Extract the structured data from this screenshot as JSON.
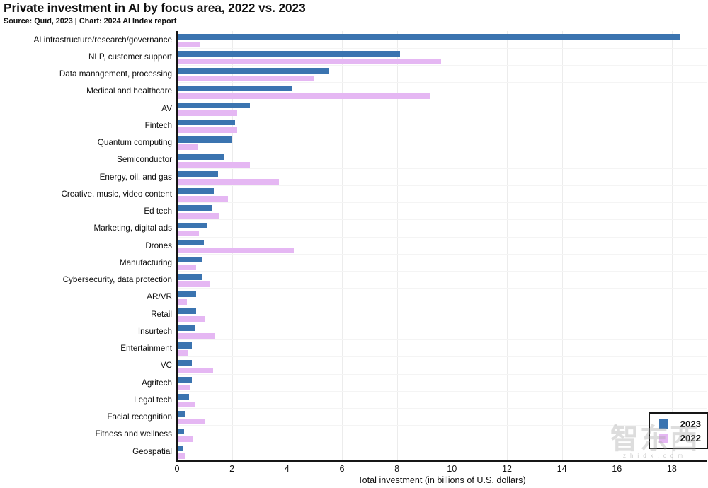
{
  "header": {
    "title": "Private investment in AI by focus area, 2022 vs. 2023",
    "source_line": "Source: Quid, 2023 | Chart: 2024 AI Index report"
  },
  "watermark": {
    "text": "智东西",
    "domain": "zhidx.com"
  },
  "chart_data": {
    "type": "bar",
    "orientation": "horizontal",
    "title": "Private investment in AI by focus area, 2022 vs. 2023",
    "xlabel": "Total investment (in billions of U.S. dollars)",
    "xlim": [
      0,
      19.26
    ],
    "xticks": [
      0,
      2,
      4,
      6,
      8,
      10,
      12,
      14,
      16,
      18
    ],
    "grid": "vertical-light",
    "legend_position": "bottom-right",
    "categories": [
      "AI infrastructure/research/governance",
      "NLP, customer support",
      "Data management, processing",
      "Medical and healthcare",
      "AV",
      "Fintech",
      "Quantum computing",
      "Semiconductor",
      "Energy, oil, and gas",
      "Creative, music, video content",
      "Ed tech",
      "Marketing, digital ads",
      "Drones",
      "Manufacturing",
      "Cybersecurity, data protection",
      "AR/VR",
      "Retail",
      "Insurtech",
      "Entertainment",
      "VC",
      "Agritech",
      "Legal tech",
      "Facial recognition",
      "Fitness and wellness",
      "Geospatial"
    ],
    "series": [
      {
        "name": "2023",
        "color": "#3b74b0",
        "values": [
          18.3,
          8.1,
          5.5,
          4.2,
          2.65,
          2.1,
          2.0,
          1.7,
          1.5,
          1.35,
          1.25,
          1.1,
          0.98,
          0.92,
          0.9,
          0.7,
          0.7,
          0.63,
          0.55,
          0.54,
          0.53,
          0.44,
          0.3,
          0.25,
          0.24
        ]
      },
      {
        "name": "2022",
        "color": "#e5b7f3",
        "values": [
          0.85,
          9.6,
          5.0,
          9.2,
          2.2,
          2.2,
          0.78,
          2.65,
          3.7,
          1.85,
          1.55,
          0.8,
          4.25,
          0.7,
          1.2,
          0.35,
          1.0,
          1.4,
          0.38,
          1.3,
          0.48,
          0.67,
          1.0,
          0.6,
          0.3
        ]
      }
    ]
  }
}
